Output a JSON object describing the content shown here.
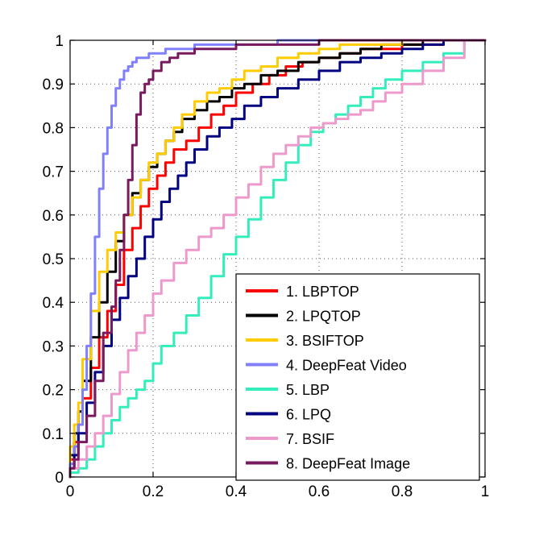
{
  "chart_data": {
    "type": "line",
    "title": "",
    "xlabel": "",
    "ylabel": "",
    "xlim": [
      0,
      1
    ],
    "ylim": [
      0,
      1
    ],
    "grid": true,
    "legend_position": "bottom-right",
    "x_ticks": [
      "0",
      "0.2",
      "0.4",
      "0.6",
      "0.8",
      "1"
    ],
    "y_ticks": [
      "0",
      "0.1",
      "0.2",
      "0.3",
      "0.4",
      "0.5",
      "0.6",
      "0.7",
      "0.8",
      "0.9",
      "1"
    ],
    "series": [
      {
        "name": "1. LBPTOP",
        "color": "#ff0000",
        "x": [
          0,
          0.01,
          0.02,
          0.03,
          0.05,
          0.07,
          0.09,
          0.11,
          0.13,
          0.15,
          0.17,
          0.19,
          0.21,
          0.23,
          0.25,
          0.28,
          0.31,
          0.34,
          0.37,
          0.4,
          0.44,
          0.48,
          0.52,
          0.56,
          0.6,
          0.65,
          0.7,
          0.75,
          0.8,
          0.85,
          0.9,
          0.95,
          1.0
        ],
        "y": [
          0,
          0.04,
          0.08,
          0.12,
          0.18,
          0.25,
          0.32,
          0.38,
          0.44,
          0.52,
          0.57,
          0.62,
          0.66,
          0.69,
          0.72,
          0.75,
          0.77,
          0.8,
          0.83,
          0.85,
          0.88,
          0.9,
          0.92,
          0.94,
          0.95,
          0.96,
          0.97,
          0.98,
          0.98,
          0.99,
          0.99,
          1.0,
          1.0
        ]
      },
      {
        "name": "2. LPQTOP",
        "color": "#000000",
        "x": [
          0,
          0.01,
          0.02,
          0.03,
          0.05,
          0.07,
          0.09,
          0.11,
          0.13,
          0.15,
          0.17,
          0.19,
          0.21,
          0.23,
          0.25,
          0.27,
          0.3,
          0.33,
          0.36,
          0.39,
          0.42,
          0.46,
          0.5,
          0.55,
          0.6,
          0.65,
          0.7,
          0.75,
          0.8,
          0.85,
          0.9,
          0.95,
          1.0
        ],
        "y": [
          0,
          0.05,
          0.1,
          0.15,
          0.22,
          0.32,
          0.4,
          0.47,
          0.54,
          0.6,
          0.65,
          0.68,
          0.71,
          0.74,
          0.77,
          0.79,
          0.82,
          0.84,
          0.86,
          0.87,
          0.89,
          0.9,
          0.92,
          0.93,
          0.95,
          0.96,
          0.97,
          0.98,
          0.99,
          0.99,
          1.0,
          1.0,
          1.0
        ]
      },
      {
        "name": "3. BSIFTOP",
        "color": "#ffcc00",
        "x": [
          0,
          0.01,
          0.02,
          0.03,
          0.05,
          0.07,
          0.09,
          0.11,
          0.13,
          0.15,
          0.17,
          0.19,
          0.21,
          0.23,
          0.25,
          0.27,
          0.3,
          0.33,
          0.36,
          0.39,
          0.42,
          0.46,
          0.5,
          0.55,
          0.6,
          0.65,
          0.7,
          0.75,
          0.8,
          0.85,
          0.9,
          0.95,
          1.0
        ],
        "y": [
          0,
          0.07,
          0.12,
          0.17,
          0.27,
          0.38,
          0.47,
          0.52,
          0.56,
          0.6,
          0.64,
          0.68,
          0.72,
          0.74,
          0.77,
          0.8,
          0.83,
          0.86,
          0.88,
          0.89,
          0.91,
          0.93,
          0.94,
          0.96,
          0.97,
          0.98,
          0.99,
          0.99,
          0.99,
          1.0,
          1.0,
          1.0,
          1.0
        ]
      },
      {
        "name": "4. DeepFeat Video",
        "color": "#8080ff",
        "x": [
          0,
          0.01,
          0.02,
          0.03,
          0.04,
          0.05,
          0.06,
          0.07,
          0.08,
          0.09,
          0.1,
          0.11,
          0.12,
          0.13,
          0.14,
          0.15,
          0.16,
          0.17,
          0.19,
          0.21,
          0.23,
          0.26,
          0.3,
          0.35,
          0.4,
          0.5,
          0.6,
          0.7,
          0.8,
          0.9,
          1.0
        ],
        "y": [
          0,
          0.03,
          0.07,
          0.12,
          0.2,
          0.3,
          0.42,
          0.55,
          0.66,
          0.74,
          0.8,
          0.85,
          0.89,
          0.91,
          0.93,
          0.94,
          0.95,
          0.96,
          0.96,
          0.97,
          0.97,
          0.98,
          0.98,
          0.99,
          0.99,
          0.99,
          1.0,
          1.0,
          1.0,
          1.0,
          1.0
        ]
      },
      {
        "name": "5. LBP",
        "color": "#33eebb",
        "x": [
          0,
          0.02,
          0.04,
          0.06,
          0.08,
          0.1,
          0.12,
          0.14,
          0.16,
          0.18,
          0.2,
          0.22,
          0.25,
          0.28,
          0.31,
          0.34,
          0.37,
          0.4,
          0.43,
          0.46,
          0.49,
          0.52,
          0.55,
          0.58,
          0.61,
          0.64,
          0.67,
          0.7,
          0.73,
          0.76,
          0.8,
          0.85,
          0.9,
          0.95,
          1.0
        ],
        "y": [
          0,
          0.01,
          0.02,
          0.04,
          0.07,
          0.1,
          0.13,
          0.16,
          0.18,
          0.2,
          0.22,
          0.26,
          0.3,
          0.33,
          0.37,
          0.41,
          0.46,
          0.51,
          0.55,
          0.59,
          0.64,
          0.68,
          0.72,
          0.76,
          0.79,
          0.81,
          0.83,
          0.85,
          0.87,
          0.89,
          0.91,
          0.93,
          0.95,
          0.97,
          1.0
        ]
      },
      {
        "name": "6. LPQ",
        "color": "#000080",
        "x": [
          0,
          0.01,
          0.02,
          0.04,
          0.06,
          0.08,
          0.1,
          0.12,
          0.14,
          0.16,
          0.18,
          0.2,
          0.22,
          0.24,
          0.26,
          0.28,
          0.3,
          0.33,
          0.36,
          0.39,
          0.42,
          0.46,
          0.5,
          0.55,
          0.6,
          0.65,
          0.7,
          0.75,
          0.8,
          0.85,
          0.9,
          0.95,
          1.0
        ],
        "y": [
          0,
          0.02,
          0.05,
          0.1,
          0.17,
          0.24,
          0.3,
          0.36,
          0.41,
          0.46,
          0.5,
          0.55,
          0.59,
          0.63,
          0.66,
          0.69,
          0.72,
          0.75,
          0.78,
          0.8,
          0.82,
          0.85,
          0.87,
          0.89,
          0.91,
          0.93,
          0.95,
          0.96,
          0.97,
          0.98,
          0.99,
          1.0,
          1.0
        ]
      },
      {
        "name": "7. BSIF",
        "color": "#ee99cc",
        "x": [
          0,
          0.02,
          0.04,
          0.06,
          0.08,
          0.1,
          0.12,
          0.14,
          0.16,
          0.18,
          0.2,
          0.22,
          0.25,
          0.28,
          0.31,
          0.34,
          0.37,
          0.4,
          0.43,
          0.46,
          0.49,
          0.52,
          0.55,
          0.58,
          0.61,
          0.64,
          0.67,
          0.7,
          0.73,
          0.76,
          0.8,
          0.85,
          0.9,
          0.95,
          1.0
        ],
        "y": [
          0,
          0.02,
          0.04,
          0.07,
          0.1,
          0.14,
          0.19,
          0.24,
          0.29,
          0.33,
          0.37,
          0.42,
          0.45,
          0.49,
          0.52,
          0.55,
          0.57,
          0.6,
          0.64,
          0.67,
          0.71,
          0.74,
          0.76,
          0.78,
          0.8,
          0.81,
          0.82,
          0.83,
          0.84,
          0.86,
          0.88,
          0.9,
          0.93,
          0.96,
          1.0
        ]
      },
      {
        "name": "8. DeepFeat Image",
        "color": "#7a1a5e",
        "x": [
          0,
          0.01,
          0.02,
          0.04,
          0.06,
          0.08,
          0.1,
          0.11,
          0.12,
          0.13,
          0.14,
          0.15,
          0.16,
          0.17,
          0.18,
          0.19,
          0.2,
          0.22,
          0.24,
          0.26,
          0.28,
          0.3,
          0.33,
          0.36,
          0.4,
          0.45,
          0.5,
          0.6,
          0.7,
          0.8,
          0.9,
          1.0
        ],
        "y": [
          0,
          0.02,
          0.04,
          0.08,
          0.14,
          0.22,
          0.33,
          0.39,
          0.45,
          0.52,
          0.6,
          0.68,
          0.76,
          0.83,
          0.88,
          0.9,
          0.91,
          0.93,
          0.95,
          0.96,
          0.97,
          0.97,
          0.98,
          0.98,
          0.98,
          0.99,
          0.99,
          0.99,
          1.0,
          1.0,
          1.0,
          1.0
        ]
      }
    ]
  }
}
